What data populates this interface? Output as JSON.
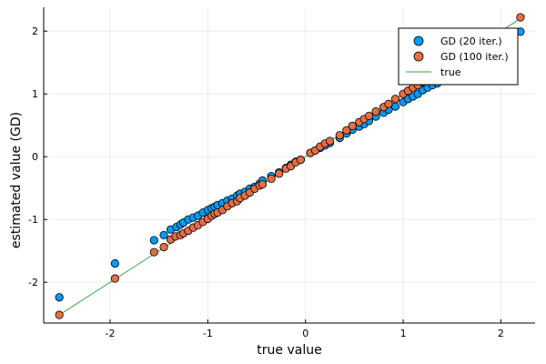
{
  "chart_data": {
    "type": "scatter",
    "xlabel": "true value",
    "ylabel": "estimated value (GD)",
    "xlim": [
      -2.68,
      2.35
    ],
    "ylim": [
      -2.65,
      2.38
    ],
    "xticks": [
      -2,
      -1,
      0,
      1,
      2
    ],
    "yticks": [
      -2,
      -1,
      0,
      1,
      2
    ],
    "grid": true,
    "legend_position": "top-right",
    "colors": {
      "series1": "#009af9",
      "series2": "#e26f46",
      "true": "#3da44d"
    },
    "series": [
      {
        "name": "GD (20 iter.)",
        "kind": "scatter",
        "points": [
          [
            -2.52,
            -2.24
          ],
          [
            -1.95,
            -1.7
          ],
          [
            -1.55,
            -1.33
          ],
          [
            -1.45,
            -1.25
          ],
          [
            -1.38,
            -1.16
          ],
          [
            -1.32,
            -1.12
          ],
          [
            -1.28,
            -1.08
          ],
          [
            -1.25,
            -1.05
          ],
          [
            -1.2,
            -1.0
          ],
          [
            -1.15,
            -0.97
          ],
          [
            -1.1,
            -0.94
          ],
          [
            -1.05,
            -0.89
          ],
          [
            -1.0,
            -0.85
          ],
          [
            -0.96,
            -0.82
          ],
          [
            -0.93,
            -0.8
          ],
          [
            -0.9,
            -0.77
          ],
          [
            -0.85,
            -0.74
          ],
          [
            -0.8,
            -0.7
          ],
          [
            -0.75,
            -0.67
          ],
          [
            -0.7,
            -0.62
          ],
          [
            -0.67,
            -0.59
          ],
          [
            -0.62,
            -0.56
          ],
          [
            -0.57,
            -0.51
          ],
          [
            -0.52,
            -0.48
          ],
          [
            -0.47,
            -0.43
          ],
          [
            -0.44,
            -0.38
          ],
          [
            -0.35,
            -0.31
          ],
          [
            -0.27,
            -0.25
          ],
          [
            -0.2,
            -0.18
          ],
          [
            -0.15,
            -0.13
          ],
          [
            -0.1,
            -0.08
          ],
          [
            -0.05,
            -0.05
          ],
          [
            0.05,
            0.06
          ],
          [
            0.1,
            0.1
          ],
          [
            0.15,
            0.14
          ],
          [
            0.2,
            0.18
          ],
          [
            0.25,
            0.22
          ],
          [
            0.35,
            0.3
          ],
          [
            0.42,
            0.37
          ],
          [
            0.48,
            0.43
          ],
          [
            0.55,
            0.48
          ],
          [
            0.6,
            0.52
          ],
          [
            0.65,
            0.57
          ],
          [
            0.72,
            0.64
          ],
          [
            0.8,
            0.7
          ],
          [
            0.85,
            0.75
          ],
          [
            0.92,
            0.8
          ],
          [
            1.0,
            0.87
          ],
          [
            1.05,
            0.92
          ],
          [
            1.1,
            0.96
          ],
          [
            1.15,
            1.0
          ],
          [
            1.2,
            1.06
          ],
          [
            1.25,
            1.1
          ],
          [
            1.3,
            1.14
          ],
          [
            1.35,
            1.17
          ],
          [
            1.4,
            1.21
          ],
          [
            1.45,
            1.25
          ],
          [
            1.55,
            1.35
          ],
          [
            1.65,
            1.45
          ],
          [
            1.75,
            1.52
          ],
          [
            2.2,
            1.99
          ]
        ]
      },
      {
        "name": "GD (100 iter.)",
        "kind": "scatter",
        "points": [
          [
            -2.52,
            -2.52
          ],
          [
            -1.95,
            -1.94
          ],
          [
            -1.55,
            -1.52
          ],
          [
            -1.45,
            -1.44
          ],
          [
            -1.38,
            -1.32
          ],
          [
            -1.33,
            -1.27
          ],
          [
            -1.28,
            -1.25
          ],
          [
            -1.25,
            -1.22
          ],
          [
            -1.2,
            -1.18
          ],
          [
            -1.15,
            -1.13
          ],
          [
            -1.1,
            -1.09
          ],
          [
            -1.05,
            -1.04
          ],
          [
            -1.0,
            -0.99
          ],
          [
            -0.96,
            -0.94
          ],
          [
            -0.93,
            -0.91
          ],
          [
            -0.9,
            -0.89
          ],
          [
            -0.85,
            -0.85
          ],
          [
            -0.8,
            -0.79
          ],
          [
            -0.75,
            -0.74
          ],
          [
            -0.7,
            -0.71
          ],
          [
            -0.67,
            -0.66
          ],
          [
            -0.62,
            -0.62
          ],
          [
            -0.57,
            -0.57
          ],
          [
            -0.52,
            -0.51
          ],
          [
            -0.47,
            -0.46
          ],
          [
            -0.44,
            -0.44
          ],
          [
            -0.35,
            -0.35
          ],
          [
            -0.27,
            -0.27
          ],
          [
            -0.2,
            -0.19
          ],
          [
            -0.15,
            -0.15
          ],
          [
            -0.1,
            -0.09
          ],
          [
            -0.05,
            -0.05
          ],
          [
            0.05,
            0.06
          ],
          [
            0.1,
            0.1
          ],
          [
            0.15,
            0.16
          ],
          [
            0.2,
            0.21
          ],
          [
            0.25,
            0.25
          ],
          [
            0.35,
            0.34
          ],
          [
            0.42,
            0.42
          ],
          [
            0.48,
            0.49
          ],
          [
            0.55,
            0.55
          ],
          [
            0.6,
            0.6
          ],
          [
            0.65,
            0.65
          ],
          [
            0.72,
            0.72
          ],
          [
            0.8,
            0.79
          ],
          [
            0.85,
            0.84
          ],
          [
            0.92,
            0.92
          ],
          [
            1.0,
            1.0
          ],
          [
            1.05,
            1.05
          ],
          [
            1.1,
            1.1
          ],
          [
            1.15,
            1.14
          ],
          [
            1.2,
            1.19
          ],
          [
            1.25,
            1.25
          ],
          [
            1.3,
            1.3
          ],
          [
            1.35,
            1.34
          ],
          [
            1.4,
            1.38
          ],
          [
            1.45,
            1.45
          ],
          [
            1.55,
            1.55
          ],
          [
            1.65,
            1.65
          ],
          [
            1.75,
            1.75
          ],
          [
            2.2,
            2.22
          ]
        ]
      },
      {
        "name": "true",
        "kind": "line",
        "points": [
          [
            -2.52,
            -2.52
          ],
          [
            2.25,
            2.25
          ]
        ]
      }
    ]
  }
}
